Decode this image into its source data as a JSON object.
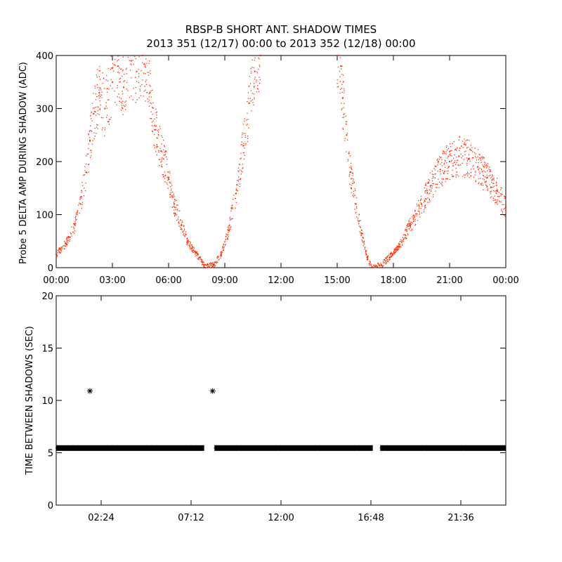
{
  "title_line1": "RBSP-B SHORT ANT. SHADOW TIMES",
  "title_line2": "2013 351 (12/17) 00:00 to 2013 352 (12/18) 00:00",
  "colors": {
    "top_points": "#ff2a00",
    "bottom_points": "#000000",
    "axes": "#000000"
  },
  "chart_data": [
    {
      "type": "scatter",
      "title": "RBSP-B SHORT ANT. SHADOW TIMES",
      "subtitle": "2013 351 (12/17) 00:00 to 2013 352 (12/18) 00:00",
      "xlabel": "",
      "ylabel": "Probe 5 DELTA AMP DURING SHADOW (ADC)",
      "xlim": [
        0,
        24
      ],
      "ylim": [
        0,
        400
      ],
      "x_ticks": [
        "00:00",
        "03:00",
        "06:00",
        "09:00",
        "12:00",
        "15:00",
        "18:00",
        "21:00",
        "00:00"
      ],
      "y_ticks": [
        "0",
        "100",
        "200",
        "300",
        "400"
      ],
      "marker": "dot",
      "grid": false,
      "series": [
        {
          "points": [
            [
              0.0,
              25
            ],
            [
              0.5,
              45
            ],
            [
              1.0,
              80
            ],
            [
              1.3,
              120
            ],
            [
              1.6,
              180
            ],
            [
              1.8,
              240
            ],
            [
              2.0,
              290
            ],
            [
              2.3,
              330
            ],
            [
              2.6,
              300
            ],
            [
              3.0,
              350
            ],
            [
              3.3,
              380
            ],
            [
              3.6,
              340
            ],
            [
              4.0,
              390
            ],
            [
              4.3,
              370
            ],
            [
              4.6,
              400
            ],
            [
              5.0,
              330
            ],
            [
              5.3,
              260
            ],
            [
              5.6,
              220
            ],
            [
              6.0,
              170
            ],
            [
              6.3,
              120
            ],
            [
              6.7,
              80
            ],
            [
              7.0,
              50
            ],
            [
              7.4,
              30
            ],
            [
              7.8,
              10
            ],
            [
              7.95,
              0
            ],
            [
              8.4,
              5
            ],
            [
              8.8,
              25
            ],
            [
              9.2,
              70
            ],
            [
              9.6,
              140
            ],
            [
              10.0,
              230
            ],
            [
              10.3,
              310
            ],
            [
              10.6,
              370
            ],
            [
              10.9,
              400
            ],
            [
              15.0,
              400
            ],
            [
              15.2,
              380
            ],
            [
              15.3,
              320
            ],
            [
              15.5,
              250
            ],
            [
              15.7,
              180
            ],
            [
              16.0,
              120
            ],
            [
              16.3,
              65
            ],
            [
              16.6,
              20
            ],
            [
              16.85,
              0
            ],
            [
              17.35,
              5
            ],
            [
              17.8,
              20
            ],
            [
              18.3,
              40
            ],
            [
              18.9,
              80
            ],
            [
              19.5,
              120
            ],
            [
              20.0,
              155
            ],
            [
              20.5,
              185
            ],
            [
              21.0,
              200
            ],
            [
              21.5,
              210
            ],
            [
              22.0,
              205
            ],
            [
              22.5,
              190
            ],
            [
              23.0,
              170
            ],
            [
              23.5,
              145
            ],
            [
              24.0,
              115
            ]
          ]
        }
      ]
    },
    {
      "type": "scatter",
      "xlabel": "",
      "ylabel": "TIME BETWEEN SHADOWS (SEC)",
      "xlim": [
        0,
        24
      ],
      "ylim": [
        0,
        20
      ],
      "x_ticks": [
        "02:24",
        "07:12",
        "12:00",
        "16:48",
        "21:36"
      ],
      "y_ticks": [
        "0",
        "5",
        "10",
        "15",
        "20"
      ],
      "marker": "asterisk",
      "grid": false,
      "series": [
        {
          "baseline_value": 5.45,
          "baseline_segments": [
            [
              0.0,
              7.9
            ],
            [
              8.45,
              16.9
            ],
            [
              17.3,
              24.0
            ]
          ],
          "outliers": [
            [
              1.8,
              10.9
            ],
            [
              8.35,
              10.9
            ]
          ]
        }
      ]
    }
  ]
}
